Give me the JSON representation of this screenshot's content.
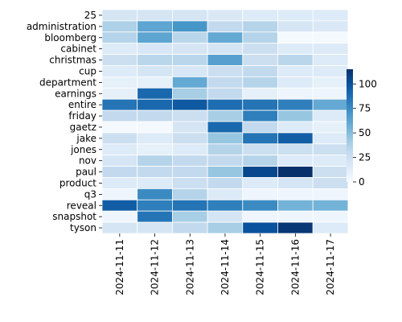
{
  "chart_data": {
    "type": "heatmap",
    "rows": [
      "25",
      "administration",
      "bloomberg",
      "cabinet",
      "christmas",
      "cup",
      "department",
      "earnings",
      "entire",
      "friday",
      "gaetz",
      "jake",
      "jones",
      "nov",
      "paul",
      "product",
      "q3",
      "reveal",
      "snapshot",
      "tyson"
    ],
    "columns": [
      "2024-11-11",
      "2024-11-12",
      "2024-11-13",
      "2024-11-14",
      "2024-11-15",
      "2024-11-16",
      "2024-11-17"
    ],
    "values": [
      [
        20,
        20,
        20,
        17,
        15,
        15,
        15
      ],
      [
        37,
        62,
        70,
        30,
        35,
        20,
        17
      ],
      [
        35,
        62,
        33,
        60,
        35,
        2,
        2
      ],
      [
        15,
        18,
        20,
        20,
        25,
        15,
        15
      ],
      [
        25,
        33,
        33,
        65,
        25,
        33,
        15
      ],
      [
        15,
        20,
        18,
        25,
        30,
        15,
        15
      ],
      [
        10,
        10,
        60,
        30,
        35,
        15,
        10
      ],
      [
        10,
        90,
        40,
        30,
        10,
        5,
        5
      ],
      [
        85,
        90,
        97,
        88,
        85,
        80,
        60
      ],
      [
        30,
        30,
        25,
        40,
        80,
        45,
        15
      ],
      [
        2,
        2,
        20,
        90,
        30,
        15,
        10
      ],
      [
        25,
        15,
        25,
        45,
        85,
        95,
        15
      ],
      [
        15,
        10,
        15,
        35,
        25,
        25,
        25
      ],
      [
        20,
        35,
        30,
        30,
        35,
        15,
        15
      ],
      [
        30,
        30,
        30,
        45,
        105,
        115,
        25
      ],
      [
        15,
        15,
        25,
        30,
        15,
        20,
        25
      ],
      [
        5,
        75,
        35,
        15,
        5,
        5,
        5
      ],
      [
        95,
        80,
        85,
        80,
        75,
        55,
        55
      ],
      [
        5,
        85,
        40,
        20,
        5,
        5,
        5
      ],
      [
        20,
        20,
        30,
        40,
        100,
        112,
        15
      ]
    ],
    "vmin": 0,
    "vmax": 115,
    "colorbar_ticks": [
      0,
      25,
      50,
      75,
      100
    ],
    "colorscale": [
      "#f7fbff",
      "#deebf7",
      "#c6dbef",
      "#9ecae1",
      "#6baed6",
      "#4292c6",
      "#2171b5",
      "#08519c",
      "#08306b"
    ],
    "grid": true
  }
}
